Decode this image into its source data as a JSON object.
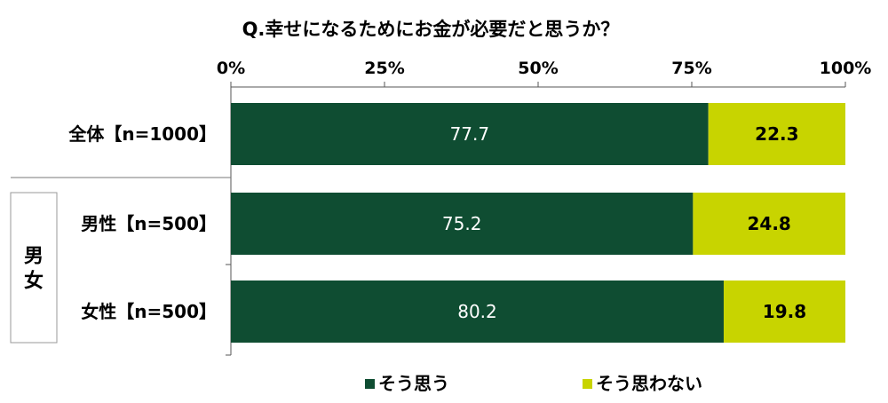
{
  "chart_data": {
    "type": "bar",
    "orientation": "horizontal",
    "stacked": true,
    "title": "Q.幸せになるためにお金が必要だと思うか？",
    "x_ticks": [
      "0%",
      "25%",
      "50%",
      "75%",
      "100%"
    ],
    "xlim": [
      0,
      100
    ],
    "categories": [
      "全体【n=1000】",
      "男性【n=500】",
      "女性【n=500】"
    ],
    "group_label": "男女",
    "group_members": [
      1,
      2
    ],
    "series": [
      {
        "name": "そう思う",
        "color": "#0f4d32",
        "values": [
          77.7,
          75.2,
          80.2
        ]
      },
      {
        "name": "そう思わない",
        "color": "#c8d400",
        "values": [
          22.3,
          24.8,
          19.8
        ]
      }
    ],
    "legend_position": "bottom"
  }
}
